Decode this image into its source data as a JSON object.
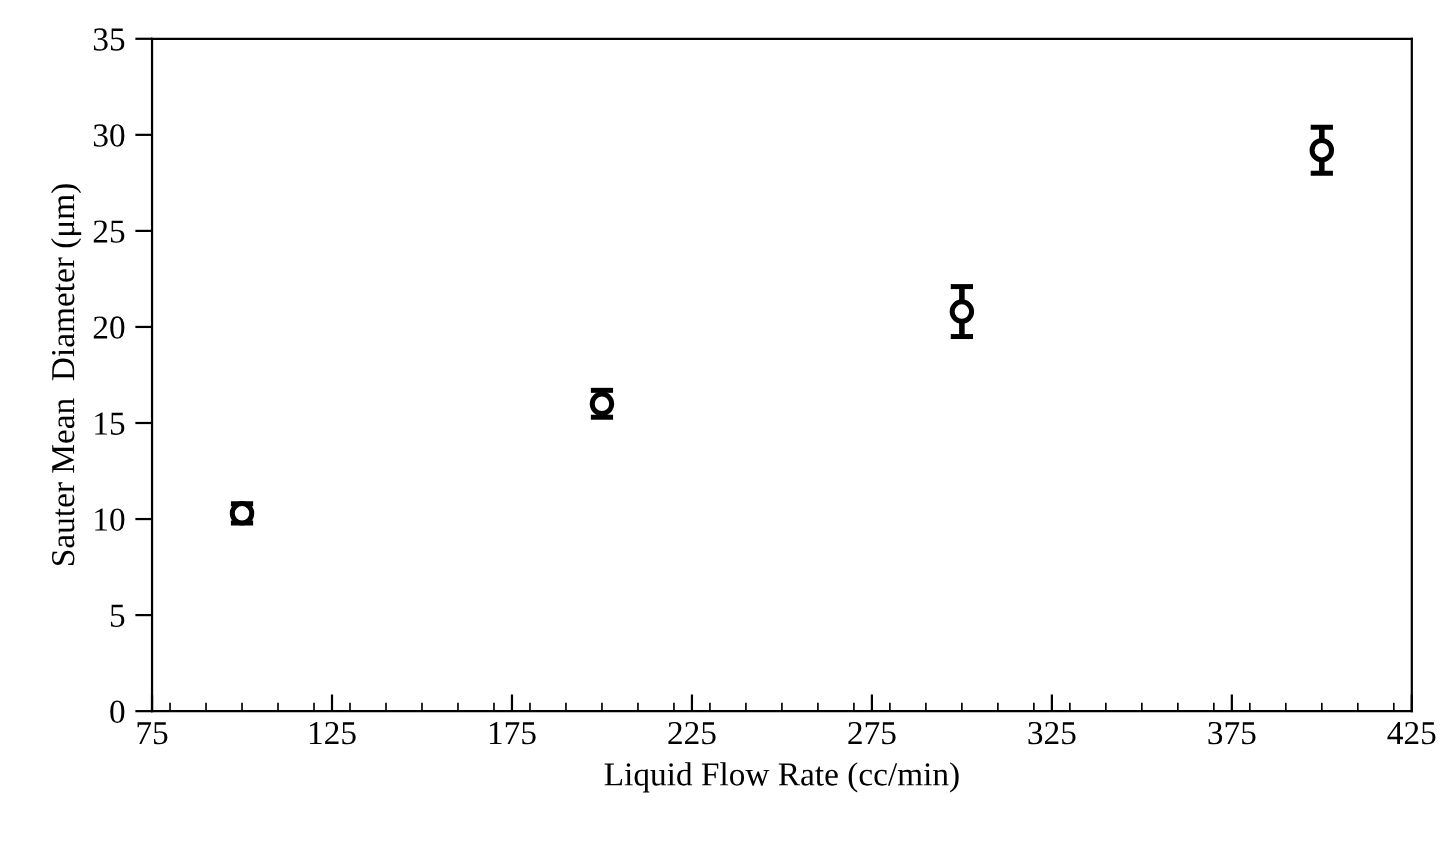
{
  "chart_data": {
    "type": "scatter",
    "xlabel": "Liquid Flow Rate (cc/min)",
    "ylabel": "Sauter Mean  Diameter (μm)",
    "x": [
      100,
      200,
      300,
      400
    ],
    "series": [
      {
        "color": "#000000",
        "values": [
          10.3,
          16.0,
          20.8,
          29.2
        ],
        "errors": [
          0.5,
          0.7,
          1.3,
          1.2
        ]
      }
    ],
    "marker": "circle",
    "xlim": [
      75,
      425
    ],
    "xticks": [
      75,
      125,
      175,
      225,
      275,
      325,
      375,
      425
    ],
    "ylim": [
      0,
      35
    ],
    "yticks": [
      0,
      5,
      10,
      15,
      20,
      25,
      30,
      35
    ],
    "grid": false,
    "legend": false
  }
}
